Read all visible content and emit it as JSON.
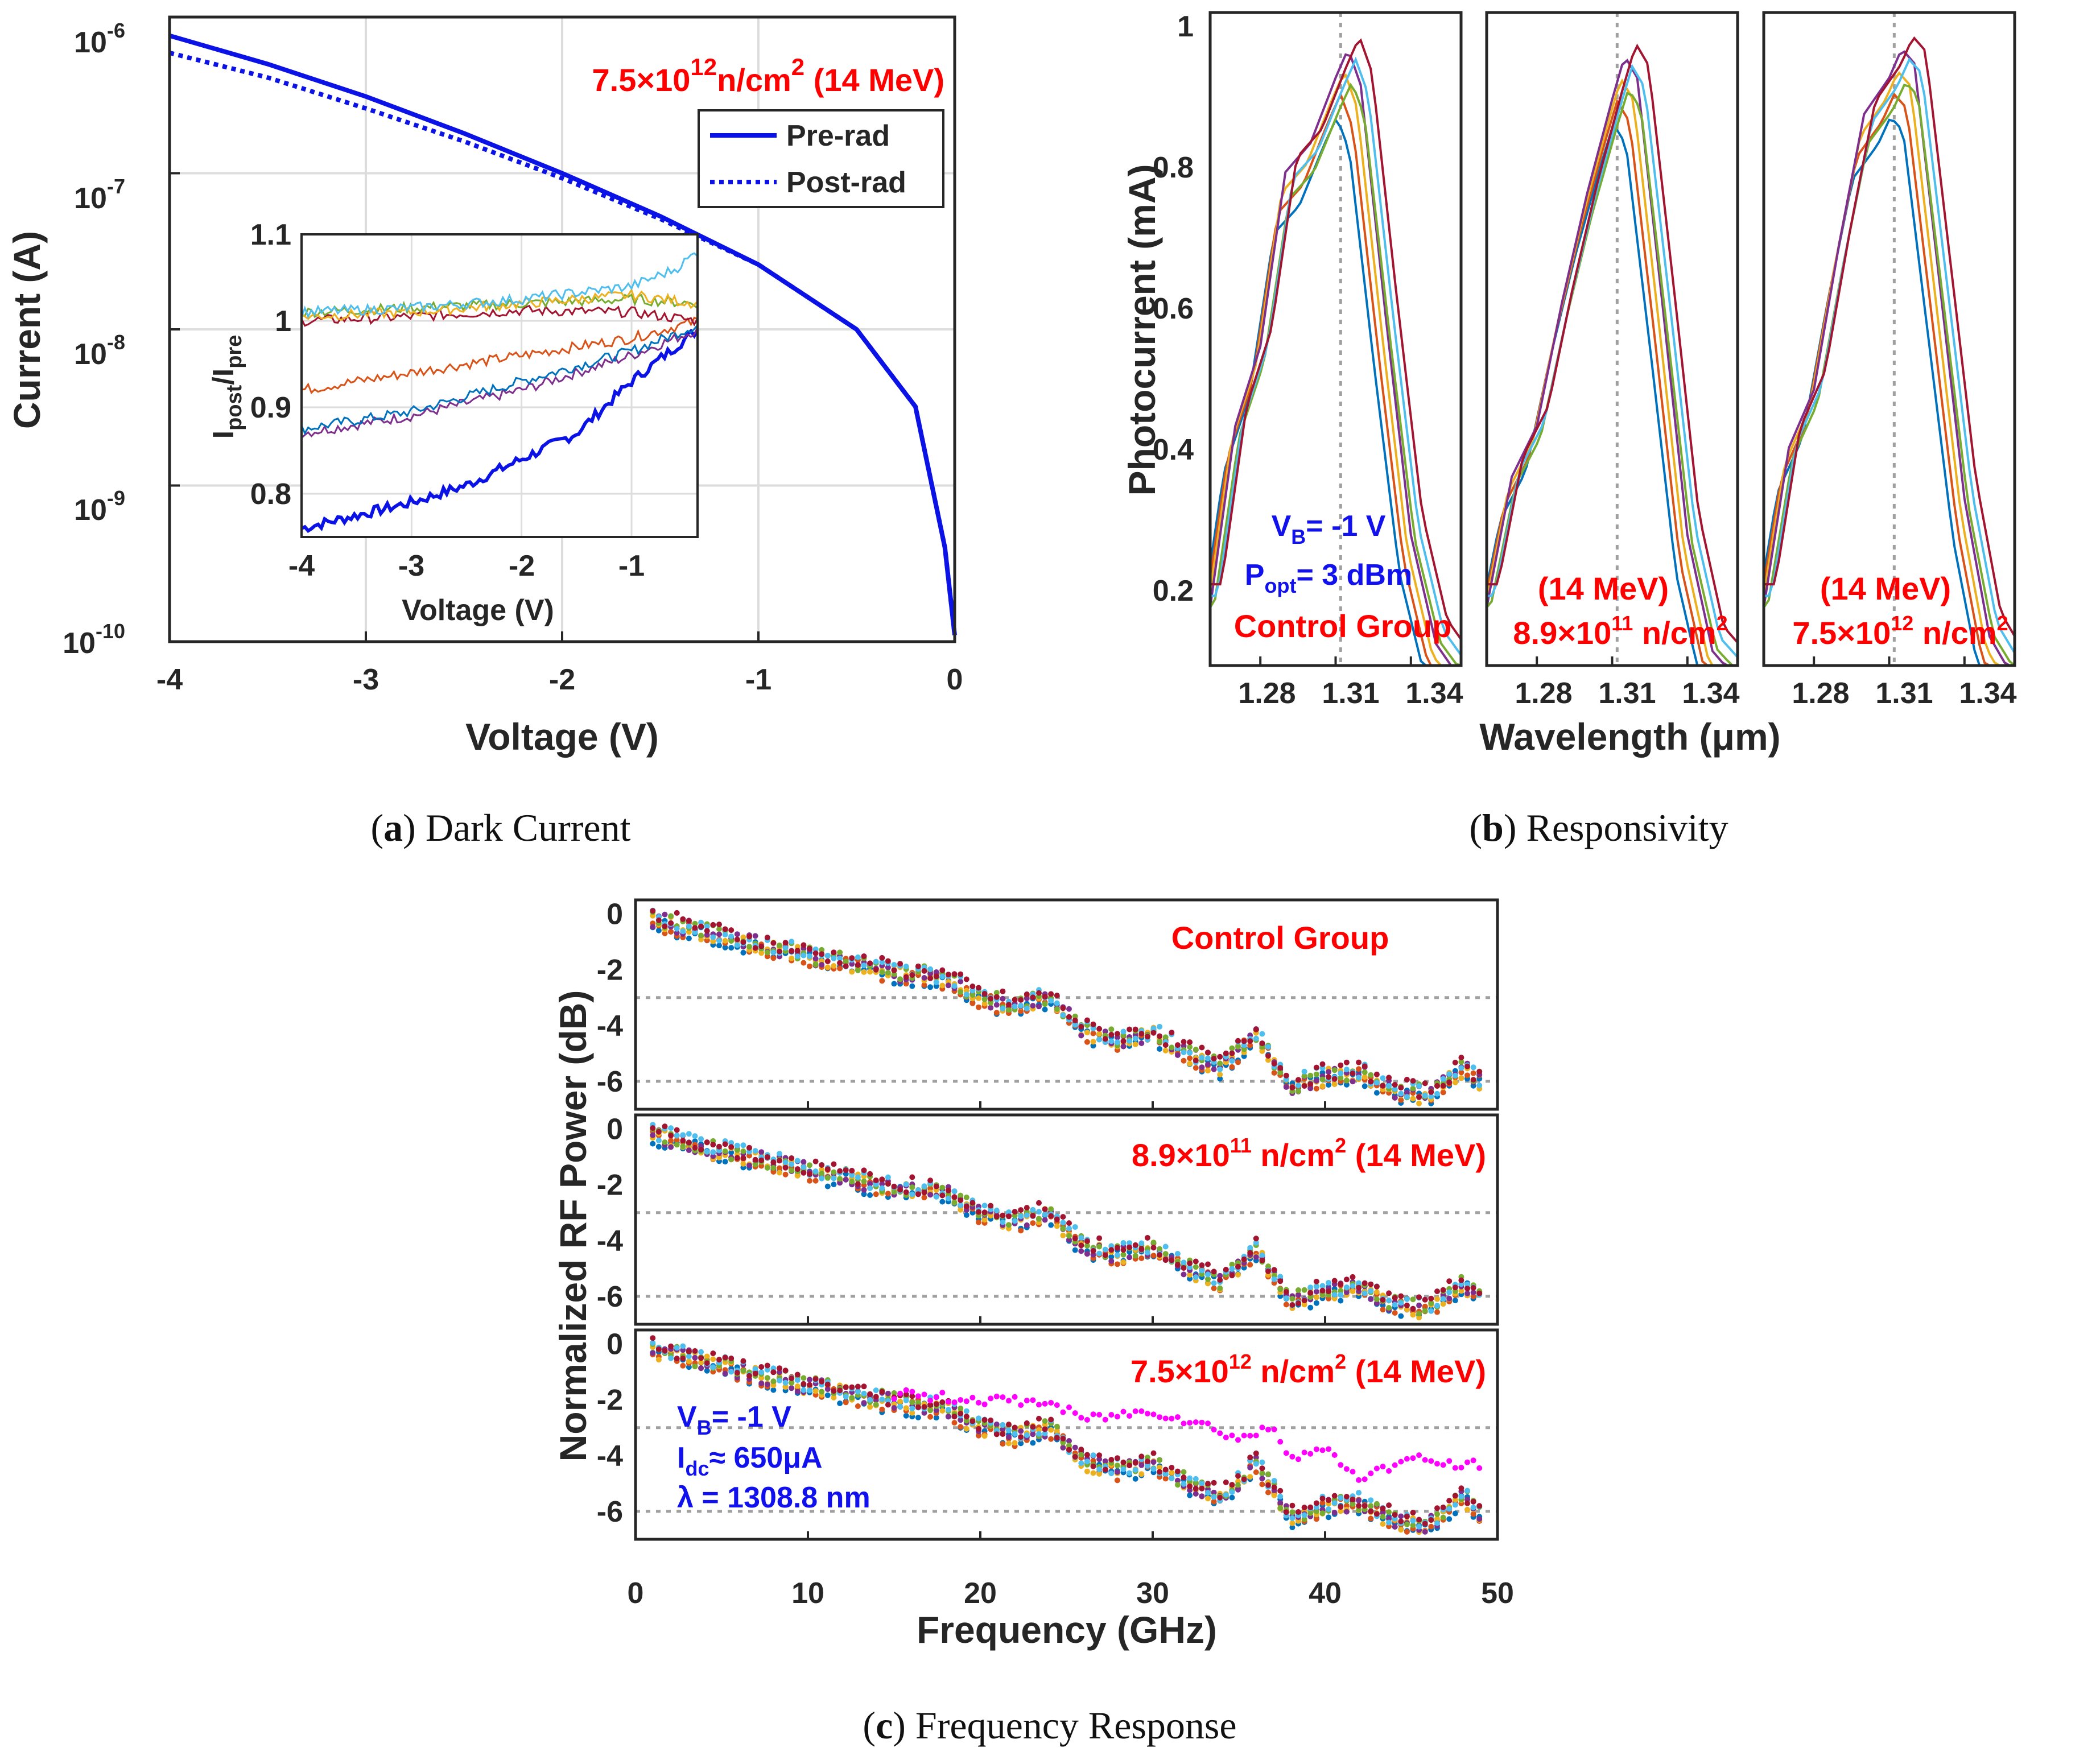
{
  "colors": {
    "main": "#0b12e6",
    "annotation_red": "#ff0000",
    "annotation_blue": "#1111ee",
    "palette": [
      "#0072bd",
      "#d95319",
      "#edb120",
      "#7e2f8e",
      "#77ac30",
      "#4dbeee",
      "#a2142f"
    ],
    "magenta": "#ff00ff"
  },
  "captions": {
    "a_letter": "a",
    "a_text": "Dark Current",
    "b_letter": "b",
    "b_text": "Responsivity",
    "c_letter": "c",
    "c_text": "Frequency Response"
  },
  "chart_data": [
    {
      "id": "a",
      "type": "line",
      "xlabel": "Voltage (V)",
      "ylabel": "Current (A)",
      "yscale": "log",
      "xlim": [
        -4,
        0
      ],
      "ylim": [
        1e-10,
        1e-06
      ],
      "xticks": [
        "-4",
        "-3",
        "-2",
        "-1",
        "0"
      ],
      "yticks_base": [
        "10",
        "10",
        "10",
        "10",
        "10"
      ],
      "yticks_exp": [
        "-10",
        "-9",
        "-8",
        "-7",
        "-6"
      ],
      "grid": true,
      "annotation": {
        "prefix": "7.5×10",
        "exp": "12",
        "suffix": "n/cm",
        "sq": "2",
        "energy": " (14 MeV)"
      },
      "legend": {
        "position": "top-right",
        "entries": [
          "Pre-rad",
          "Post-rad"
        ]
      },
      "series": [
        {
          "name": "Pre-rad",
          "style": "solid",
          "x": [
            -4,
            -3.5,
            -3,
            -2.5,
            -2,
            -1.5,
            -1,
            -0.5,
            -0.2,
            -0.05,
            0
          ],
          "y": [
            7.6e-07,
            5e-07,
            3.1e-07,
            1.8e-07,
            1e-07,
            5.3e-08,
            2.6e-08,
            1e-08,
            3.2e-09,
            4e-10,
            1.1e-10
          ]
        },
        {
          "name": "Post-rad",
          "style": "dotted",
          "x": [
            -4,
            -3.5,
            -3,
            -2.5,
            -2,
            -1.5,
            -1,
            -0.5,
            -0.2,
            -0.05,
            0
          ],
          "y": [
            5.9e-07,
            4.1e-07,
            2.6e-07,
            1.6e-07,
            9.3e-08,
            5.1e-08,
            2.6e-08,
            1e-08,
            3.2e-09,
            4e-10,
            1.1e-10
          ]
        }
      ],
      "inset": {
        "xlabel": "Voltage (V)",
        "ylabel_main": "I",
        "ylabel_sub1": "post",
        "ylabel_sep": "/I",
        "ylabel_sub2": "pre",
        "xlim": [
          -4,
          -0.4
        ],
        "ylim": [
          0.75,
          1.1
        ],
        "xticks": [
          "-4",
          "-3",
          "-2",
          "-1"
        ],
        "yticks": [
          "0.8",
          "0.9",
          "1",
          "1.1"
        ],
        "grid": true,
        "series": [
          {
            "color": "#0b12e6",
            "x": [
              -4,
              -3.5,
              -3,
              -2.5,
              -2,
              -1.5,
              -1,
              -0.4
            ],
            "y": [
              0.76,
              0.775,
              0.79,
              0.81,
              0.84,
              0.87,
              0.93,
              0.99
            ]
          },
          {
            "color": "#7e2f8e",
            "x": [
              -4,
              -3,
              -2,
              -1,
              -0.4
            ],
            "y": [
              0.87,
              0.89,
              0.92,
              0.96,
              0.99
            ]
          },
          {
            "color": "#0072bd",
            "x": [
              -4,
              -3,
              -2,
              -1,
              -0.4
            ],
            "y": [
              0.875,
              0.895,
              0.93,
              0.965,
              0.995
            ]
          },
          {
            "color": "#d95319",
            "x": [
              -4,
              -3,
              -2,
              -1,
              -0.4
            ],
            "y": [
              0.92,
              0.94,
              0.96,
              0.98,
              1.0
            ]
          },
          {
            "color": "#a2142f",
            "x": [
              -4,
              -3,
              -2,
              -1,
              -0.4
            ],
            "y": [
              1.0,
              1.005,
              1.012,
              1.01,
              1.0
            ]
          },
          {
            "color": "#77ac30",
            "x": [
              -4,
              -3,
              -2,
              -1,
              -0.4
            ],
            "y": [
              1.01,
              1.015,
              1.02,
              1.025,
              1.02
            ]
          },
          {
            "color": "#edb120",
            "x": [
              -4,
              -3,
              -2,
              -1,
              -0.4
            ],
            "y": [
              1.005,
              1.01,
              1.02,
              1.03,
              1.02
            ]
          },
          {
            "color": "#4dbeee",
            "x": [
              -4,
              -3,
              -2,
              -1,
              -0.6,
              -0.4
            ],
            "y": [
              1.01,
              1.015,
              1.025,
              1.04,
              1.06,
              1.08
            ]
          }
        ]
      }
    },
    {
      "id": "b",
      "type": "line",
      "xlabel": "Wavelength (μm)",
      "ylabel": "Photocurrent (mA)",
      "xlim": [
        1.26,
        1.36
      ],
      "ylim": [
        0.12,
        1.02
      ],
      "xticks": [
        "1.28",
        "1.31",
        "1.34"
      ],
      "yticks": [
        "0.2",
        "0.4",
        "0.6",
        "0.8",
        "1"
      ],
      "reference_line_x": 1.312,
      "panels": [
        {
          "label_lines": [
            "Control Group"
          ],
          "extra_blue": {
            "vb": "V",
            "vb_sub": "B",
            "vb_val": "= -1 V",
            "p": "P",
            "p_sub": "opt",
            "p_val": "= 3 dBm"
          },
          "profile": {
            "x": [
              1.26,
              1.27,
              1.28,
              1.29,
              1.3,
              1.31,
              1.315,
              1.32,
              1.33,
              1.34,
              1.35,
              1.36
            ],
            "y": [
              0.2,
              0.45,
              0.56,
              0.8,
              0.84,
              0.93,
              0.97,
              0.92,
              0.6,
              0.3,
              0.15,
              0.1
            ]
          }
        },
        {
          "label_lines": [
            "(14 MeV)"
          ],
          "dose": {
            "prefix": "8.9×10",
            "exp": "11",
            "suffix": " n/cm",
            "sq": "2"
          },
          "profile": {
            "x": [
              1.26,
              1.27,
              1.28,
              1.29,
              1.3,
              1.31,
              1.315,
              1.32,
              1.33,
              1.34,
              1.35,
              1.36
            ],
            "y": [
              0.2,
              0.38,
              0.45,
              0.62,
              0.77,
              0.9,
              0.96,
              0.93,
              0.62,
              0.3,
              0.14,
              0.1
            ]
          }
        },
        {
          "label_lines": [
            "(14 MeV)"
          ],
          "dose": {
            "prefix": "7.5×10",
            "exp": "12",
            "suffix": " n/cm",
            "sq": "2"
          },
          "profile": {
            "x": [
              1.26,
              1.27,
              1.28,
              1.29,
              1.3,
              1.31,
              1.315,
              1.32,
              1.33,
              1.34,
              1.35,
              1.36
            ],
            "y": [
              0.2,
              0.42,
              0.5,
              0.7,
              0.88,
              0.93,
              0.97,
              0.95,
              0.65,
              0.35,
              0.16,
              0.1
            ]
          }
        }
      ]
    },
    {
      "id": "c",
      "type": "scatter",
      "xlabel": "Frequency (GHz)",
      "ylabel": "Normalized RF Power (dB)",
      "xlim": [
        0,
        50
      ],
      "ylim": [
        -7,
        0.5
      ],
      "xticks": [
        "0",
        "10",
        "20",
        "30",
        "40",
        "50"
      ],
      "yticks": [
        "0",
        "-2",
        "-4",
        "-6"
      ],
      "reference_lines_y": [
        -3,
        -6
      ],
      "trend": {
        "x": [
          1,
          5,
          10,
          15,
          18,
          20,
          22,
          24,
          26,
          28,
          30,
          32,
          34,
          36,
          38,
          40,
          42,
          44,
          46,
          48,
          49
        ],
        "y": [
          -0.2,
          -0.8,
          -1.5,
          -2.1,
          -2.3,
          -3.0,
          -3.3,
          -3.0,
          -4.2,
          -4.5,
          -4.3,
          -5.0,
          -5.5,
          -4.3,
          -6.2,
          -5.8,
          -5.7,
          -6.3,
          -6.5,
          -5.5,
          -6.0
        ]
      },
      "magenta_trend": {
        "x": [
          15,
          20,
          24,
          26,
          30,
          33,
          35,
          37,
          38,
          40,
          42,
          45,
          48,
          49
        ],
        "y": [
          -1.8,
          -2.0,
          -2.1,
          -2.7,
          -2.4,
          -2.9,
          -3.4,
          -3.0,
          -4.0,
          -3.8,
          -4.8,
          -4.1,
          -4.4,
          -4.3
        ]
      },
      "panels": [
        {
          "label": "Control Group"
        },
        {
          "dose": {
            "prefix": "8.9×10",
            "exp": "11",
            "suffix": " n/cm",
            "sq": "2",
            "energy": " (14 MeV)"
          }
        },
        {
          "dose": {
            "prefix": "7.5×10",
            "exp": "12",
            "suffix": " n/cm",
            "sq": "2",
            "energy": " (14 MeV)"
          },
          "conditions": {
            "vb": "V",
            "vb_sub": "B",
            "vb_val": "= -1 V",
            "idc": "I",
            "idc_sub": "dc",
            "idc_val": "≈ 650μA",
            "lambda": "λ = 1308.8 nm"
          }
        }
      ]
    }
  ]
}
